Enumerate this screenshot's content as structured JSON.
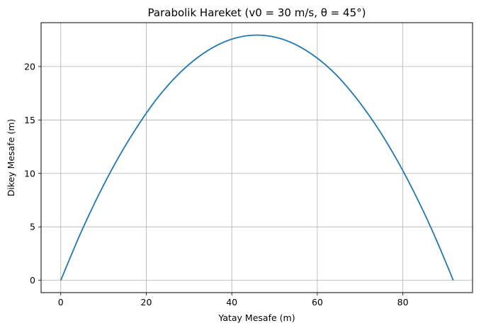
{
  "chart_data": {
    "type": "line",
    "title": "Parabolik Hareket (v0 = 30 m/s, θ = 45°)",
    "xlabel": "Yatay Mesafe (m)",
    "ylabel": "Dikey Mesafe (m)",
    "xlim": [
      -4.6,
      96.3
    ],
    "ylim": [
      -1.15,
      24.1
    ],
    "xticks": [
      0,
      20,
      40,
      60,
      80
    ],
    "yticks": [
      0,
      5,
      10,
      15,
      20
    ],
    "grid": true,
    "series": [
      {
        "color": "#1f77b4",
        "x": [
          0,
          4.6,
          9.2,
          13.8,
          18.4,
          22.9,
          27.5,
          32.1,
          36.7,
          41.3,
          45.9,
          50.5,
          55.1,
          59.7,
          64.3,
          68.8,
          73.4,
          78.0,
          82.6,
          87.2,
          91.8
        ],
        "y": [
          0,
          4.37,
          8.26,
          11.7,
          14.68,
          17.2,
          19.27,
          20.87,
          22.02,
          22.71,
          22.94,
          22.71,
          22.02,
          20.87,
          19.27,
          17.2,
          14.68,
          11.7,
          8.26,
          4.37,
          0
        ]
      }
    ]
  }
}
